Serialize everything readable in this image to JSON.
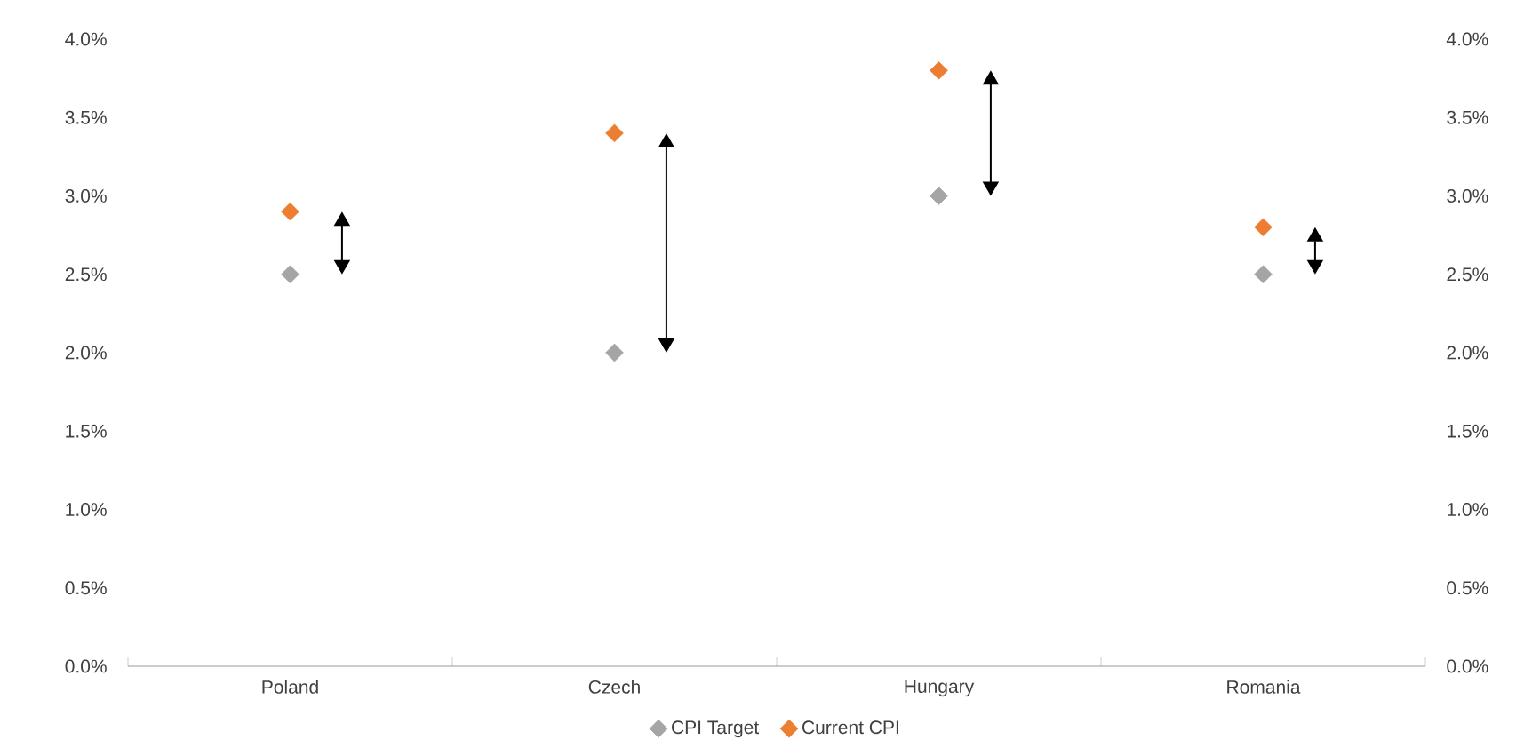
{
  "chart_data": {
    "type": "scatter",
    "categories": [
      "Poland",
      "Czech",
      "Hungary",
      "Romania"
    ],
    "series": [
      {
        "name": "CPI Target",
        "color": "#a5a5a5",
        "values": [
          2.5,
          2.0,
          3.0,
          2.5
        ]
      },
      {
        "name": "Current CPI",
        "color": "#ed7d31",
        "values": [
          2.9,
          3.4,
          3.8,
          2.8
        ]
      }
    ],
    "ylim": [
      0,
      4
    ],
    "yticks": [
      {
        "value": 0,
        "label": "0.0%"
      },
      {
        "value": 0.5,
        "label": "0.5%"
      },
      {
        "value": 1,
        "label": "1.0%"
      },
      {
        "value": 1.5,
        "label": "1.5%"
      },
      {
        "value": 2,
        "label": "2.0%"
      },
      {
        "value": 2.5,
        "label": "2.5%"
      },
      {
        "value": 3,
        "label": "3.0%"
      },
      {
        "value": 3.5,
        "label": "3.5%"
      },
      {
        "value": 4,
        "label": "4.0%"
      }
    ],
    "y2lim": [
      0,
      4
    ],
    "y2ticks": [
      {
        "value": 0,
        "label": "0.0%"
      },
      {
        "value": 0.5,
        "label": "0.5%"
      },
      {
        "value": 1,
        "label": "1.0%"
      },
      {
        "value": 1.5,
        "label": "1.5%"
      },
      {
        "value": 2,
        "label": "2.0%"
      },
      {
        "value": 2.5,
        "label": "2.5%"
      },
      {
        "value": 3,
        "label": "3.0%"
      },
      {
        "value": 3.5,
        "label": "3.5%"
      },
      {
        "value": 4,
        "label": "4.0%"
      }
    ],
    "marker": "diamond",
    "grid": false,
    "legend": "bottom"
  }
}
